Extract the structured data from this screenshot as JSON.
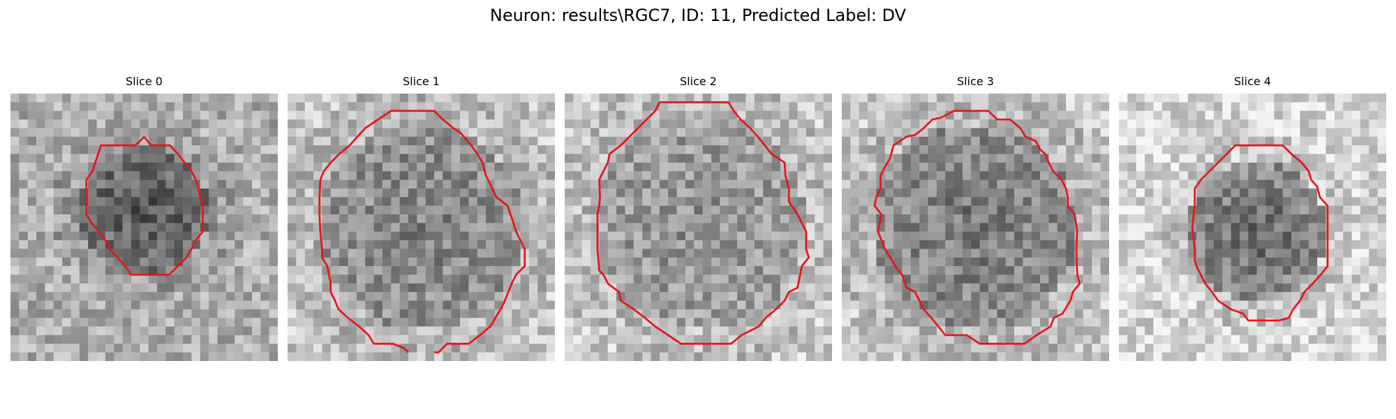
{
  "figure": {
    "title": "Neuron: results\\RGC7, ID: 11, Predicted Label: DV"
  },
  "panels": [
    {
      "title": "Slice 0"
    },
    {
      "title": "Slice 1"
    },
    {
      "title": "Slice 2"
    },
    {
      "title": "Slice 3"
    },
    {
      "title": "Slice 4"
    }
  ],
  "colors": {
    "contour": "#e8141a",
    "background": "#ffffff"
  }
}
